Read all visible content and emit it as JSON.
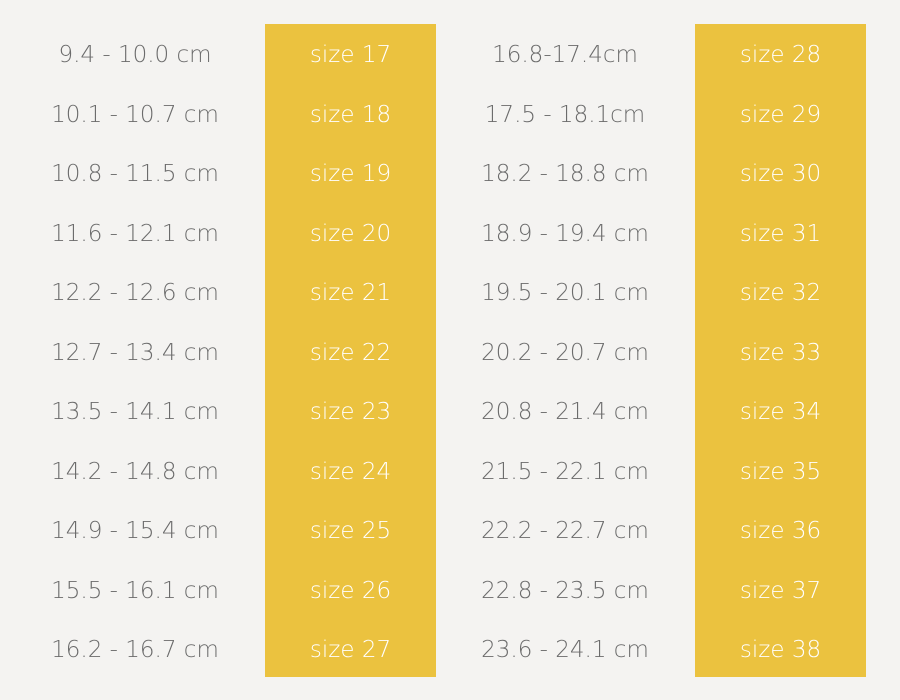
{
  "tables": [
    {
      "rows": [
        [
          "9.4 - 10.0 cm",
          "size 17"
        ],
        [
          "10.1 - 10.7 cm",
          "size 18"
        ],
        [
          "10.8 - 11.5 cm",
          "size 19"
        ],
        [
          "11.6 - 12.1 cm",
          "size 20"
        ],
        [
          "12.2 - 12.6 cm",
          "size 21"
        ],
        [
          "12.7 - 13.4 cm",
          "size 22"
        ],
        [
          "13.5 - 14.1 cm",
          "size 23"
        ],
        [
          "14.2 - 14.8 cm",
          "size 24"
        ],
        [
          "14.9 - 15.4 cm",
          "size 25"
        ],
        [
          "15.5 - 16.1 cm",
          "size 26"
        ],
        [
          "16.2 - 16.7 cm",
          "size 27"
        ]
      ]
    },
    {
      "rows": [
        [
          "16.8-17.4cm",
          "size 28"
        ],
        [
          "17.5 - 18.1cm",
          "size 29"
        ],
        [
          "18.2 - 18.8 cm",
          "size 30"
        ],
        [
          "18.9 - 19.4 cm",
          "size 31"
        ],
        [
          "19.5 - 20.1 cm",
          "size 32"
        ],
        [
          "20.2 - 20.7 cm",
          "size 33"
        ],
        [
          "20.8 - 21.4 cm",
          "size 34"
        ],
        [
          "21.5 - 22.1 cm",
          "size 35"
        ],
        [
          "22.2 - 22.7 cm",
          "size 36"
        ],
        [
          "22.8 - 23.5 cm",
          "size 37"
        ],
        [
          "23.6 - 24.1 cm",
          "size 38"
        ]
      ]
    }
  ]
}
